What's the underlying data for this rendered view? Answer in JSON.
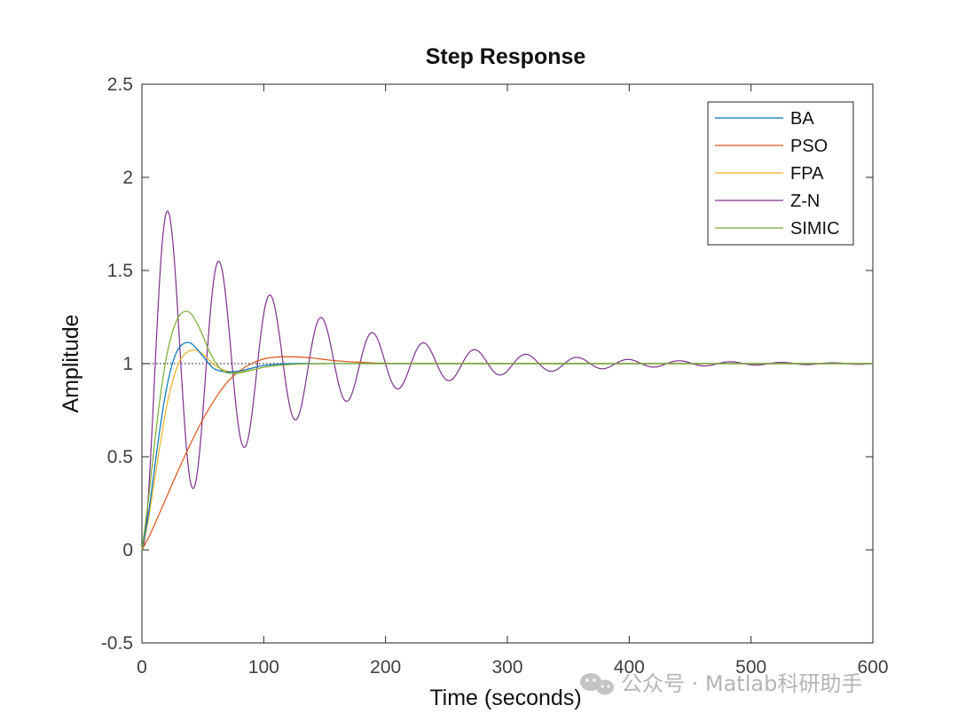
{
  "chart_data": {
    "type": "line",
    "title": "Step Response",
    "xlabel": "Time (seconds)",
    "ylabel": "Amplitude",
    "xlim": [
      0,
      600
    ],
    "ylim": [
      -0.5,
      2.5
    ],
    "xticks": [
      "0",
      "100",
      "200",
      "300",
      "400",
      "500",
      "600"
    ],
    "yticks": [
      "-0.5",
      "0",
      "0.5",
      "1",
      "1.5",
      "2",
      "2.5"
    ],
    "reference_line": 1,
    "legend_position": "top-right",
    "series": [
      {
        "name": "BA",
        "color": "#0072BD",
        "points": [
          [
            0,
            0
          ],
          [
            5,
            0.18
          ],
          [
            10,
            0.42
          ],
          [
            15,
            0.66
          ],
          [
            20,
            0.86
          ],
          [
            25,
            1.0
          ],
          [
            30,
            1.08
          ],
          [
            35,
            1.11
          ],
          [
            40,
            1.11
          ],
          [
            45,
            1.08
          ],
          [
            50,
            1.04
          ],
          [
            55,
            1.0
          ],
          [
            60,
            0.97
          ],
          [
            70,
            0.955
          ],
          [
            80,
            0.96
          ],
          [
            90,
            0.975
          ],
          [
            100,
            0.99
          ],
          [
            120,
            1.0
          ],
          [
            150,
            1.0
          ],
          [
            200,
            1.0
          ],
          [
            600,
            1.0
          ]
        ]
      },
      {
        "name": "PSO",
        "color": "#D95319",
        "points": [
          [
            0,
            0
          ],
          [
            5,
            0.06
          ],
          [
            10,
            0.13
          ],
          [
            20,
            0.28
          ],
          [
            30,
            0.43
          ],
          [
            40,
            0.57
          ],
          [
            50,
            0.7
          ],
          [
            60,
            0.81
          ],
          [
            70,
            0.9
          ],
          [
            80,
            0.96
          ],
          [
            90,
            1.0
          ],
          [
            100,
            1.025
          ],
          [
            110,
            1.035
          ],
          [
            120,
            1.037
          ],
          [
            130,
            1.035
          ],
          [
            140,
            1.03
          ],
          [
            150,
            1.022
          ],
          [
            160,
            1.015
          ],
          [
            180,
            1.007
          ],
          [
            200,
            1.002
          ],
          [
            250,
            1.0
          ],
          [
            600,
            1.0
          ]
        ]
      },
      {
        "name": "FPA",
        "color": "#EDB120",
        "points": [
          [
            0,
            0
          ],
          [
            5,
            0.15
          ],
          [
            10,
            0.36
          ],
          [
            15,
            0.57
          ],
          [
            20,
            0.76
          ],
          [
            25,
            0.9
          ],
          [
            30,
            1.0
          ],
          [
            35,
            1.05
          ],
          [
            40,
            1.07
          ],
          [
            45,
            1.07
          ],
          [
            50,
            1.05
          ],
          [
            55,
            1.02
          ],
          [
            60,
            0.99
          ],
          [
            70,
            0.96
          ],
          [
            80,
            0.955
          ],
          [
            90,
            0.965
          ],
          [
            100,
            0.98
          ],
          [
            120,
            0.995
          ],
          [
            150,
            1.0
          ],
          [
            200,
            1.0
          ],
          [
            600,
            1.0
          ]
        ]
      },
      {
        "name": "Z-N",
        "color": "#7E2F8E",
        "damping": 0.0095,
        "period": 42,
        "peak_time": 16.5
      },
      {
        "name": "SIMIC",
        "color": "#77AC30",
        "points": [
          [
            0,
            0
          ],
          [
            5,
            0.25
          ],
          [
            10,
            0.55
          ],
          [
            15,
            0.82
          ],
          [
            20,
            1.03
          ],
          [
            25,
            1.17
          ],
          [
            30,
            1.25
          ],
          [
            35,
            1.28
          ],
          [
            40,
            1.27
          ],
          [
            45,
            1.22
          ],
          [
            50,
            1.15
          ],
          [
            55,
            1.07
          ],
          [
            60,
            1.01
          ],
          [
            65,
            0.97
          ],
          [
            70,
            0.95
          ],
          [
            80,
            0.95
          ],
          [
            90,
            0.965
          ],
          [
            100,
            0.98
          ],
          [
            120,
            0.995
          ],
          [
            150,
            1.0
          ],
          [
            200,
            1.0
          ],
          [
            600,
            1.0
          ]
        ]
      }
    ]
  },
  "watermark": {
    "text": "公众号 · Matlab科研助手"
  }
}
